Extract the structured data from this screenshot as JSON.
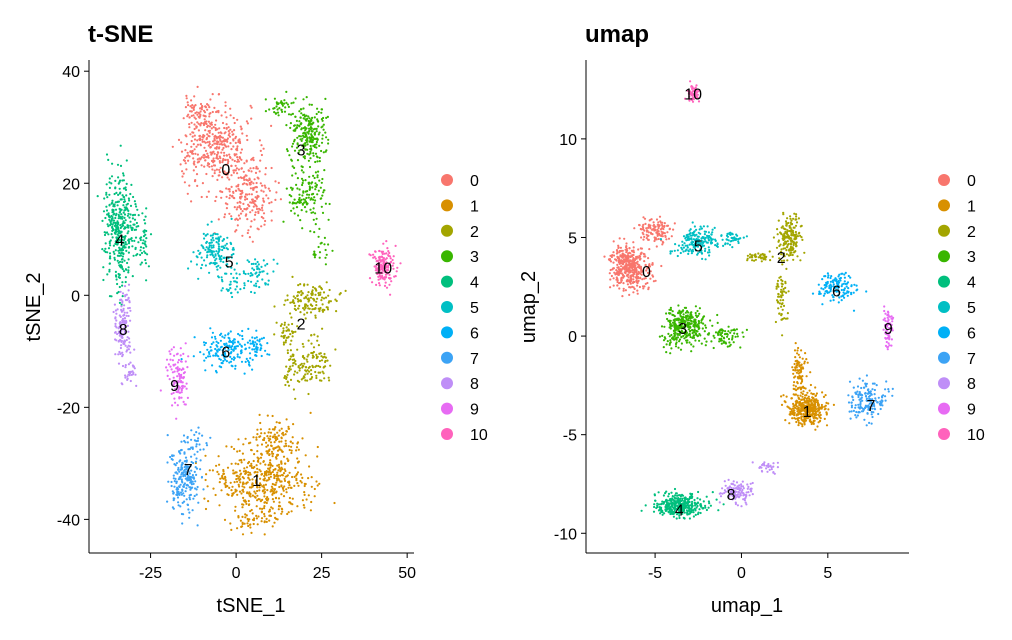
{
  "legend_labels": [
    "0",
    "1",
    "2",
    "3",
    "4",
    "5",
    "6",
    "7",
    "8",
    "9",
    "10"
  ],
  "colors": [
    "#F8766D",
    "#D89000",
    "#A3A500",
    "#39B600",
    "#00BF7D",
    "#00BFC4",
    "#00B0F6",
    "#3CA3F5",
    "#BF8EF7",
    "#E76BF3",
    "#FF62BC"
  ],
  "chart_data": [
    {
      "type": "scatter",
      "title": "t-SNE",
      "xlabel": "tSNE_1",
      "ylabel": "tSNE_2",
      "xlim": [
        -43,
        52
      ],
      "ylim": [
        -46,
        42
      ],
      "x_ticks": [
        -25,
        0,
        25,
        50
      ],
      "y_ticks": [
        -40,
        -20,
        0,
        20,
        40
      ],
      "x_tick_labels": [
        "-25",
        "0",
        "25",
        "50"
      ],
      "y_tick_labels": [
        "-40",
        "-20",
        "0",
        "20",
        "40"
      ],
      "grid": false,
      "legend_placement": "right",
      "clusters": [
        {
          "label": "0",
          "label_x": -3,
          "label_y": 22.5,
          "blobs": [
            [
              -5,
              27,
              8,
              6,
              330
            ],
            [
              3,
              18,
              7,
              6,
              220
            ],
            [
              -11,
              33,
              4,
              3,
              60
            ],
            [
              -14,
              23,
              3,
              5,
              40
            ]
          ]
        },
        {
          "label": "1",
          "label_x": 6,
          "label_y": -33,
          "blobs": [
            [
              8,
              -33,
              13,
              5,
              430
            ],
            [
              12,
              -26,
              6,
              4,
              120
            ],
            [
              5,
              -40,
              8,
              2,
              60
            ]
          ]
        },
        {
          "label": "2",
          "label_x": 19,
          "label_y": -5,
          "blobs": [
            [
              22,
              -1,
              6,
              3,
              130
            ],
            [
              23,
              -12,
              4,
              4,
              90
            ],
            [
              17,
              -13,
              3,
              3,
              50
            ],
            [
              15,
              -7,
              3,
              2,
              40
            ]
          ]
        },
        {
          "label": "3",
          "label_x": 19,
          "label_y": 26,
          "blobs": [
            [
              21,
              29,
              5,
              5,
              220
            ],
            [
              21,
              18,
              5,
              5,
              130
            ],
            [
              13,
              34,
              4,
              2,
              40
            ],
            [
              25,
              8,
              2,
              2,
              20
            ]
          ]
        },
        {
          "label": "4",
          "label_x": -34,
          "label_y": 10,
          "blobs": [
            [
              -34,
              12,
              4,
              9,
              380
            ],
            [
              -27,
              9,
              2,
              5,
              40
            ]
          ]
        },
        {
          "label": "5",
          "label_x": -2,
          "label_y": 6,
          "blobs": [
            [
              -6,
              8,
              5,
              4,
              140
            ],
            [
              6,
              4,
              4,
              3,
              60
            ],
            [
              -2,
              2,
              3,
              2,
              30
            ]
          ]
        },
        {
          "label": "6",
          "label_x": -3,
          "label_y": -10,
          "blobs": [
            [
              -3,
              -10,
              7,
              3,
              160
            ],
            [
              6,
              -9,
              3,
              3,
              40
            ]
          ]
        },
        {
          "label": "7",
          "label_x": -14,
          "label_y": -31,
          "blobs": [
            [
              -15,
              -33,
              4,
              5,
              200
            ],
            [
              -12,
              -26,
              3,
              2,
              30
            ]
          ]
        },
        {
          "label": "8",
          "label_x": -33,
          "label_y": -6,
          "blobs": [
            [
              -33,
              -6,
              2.5,
              6,
              150
            ],
            [
              -31,
              -14,
              1.5,
              2,
              20
            ]
          ]
        },
        {
          "label": "9",
          "label_x": -18,
          "label_y": -16,
          "blobs": [
            [
              -17,
              -15,
              2.5,
              5,
              110
            ]
          ]
        },
        {
          "label": "10",
          "label_x": 43,
          "label_y": 5,
          "blobs": [
            [
              43,
              5,
              3,
              3,
              150
            ]
          ]
        }
      ]
    },
    {
      "type": "scatter",
      "title": "umap",
      "xlabel": "umap_1",
      "ylabel": "umap_2",
      "xlim": [
        -9,
        9.7
      ],
      "ylim": [
        -11,
        14
      ],
      "x_ticks": [
        -5,
        0,
        5
      ],
      "y_ticks": [
        -10,
        -5,
        0,
        5,
        10
      ],
      "x_tick_labels": [
        "-5",
        "0",
        "5"
      ],
      "y_tick_labels": [
        "-10",
        "-5",
        "0",
        "5",
        "10"
      ],
      "grid": false,
      "legend_placement": "right",
      "clusters": [
        {
          "label": "0",
          "label_x": -5.5,
          "label_y": 3.3,
          "blobs": [
            [
              -6.5,
              3.5,
              1.0,
              1.0,
              420
            ],
            [
              -5,
              5.3,
              1.0,
              0.6,
              120
            ]
          ]
        },
        {
          "label": "1",
          "label_x": 3.8,
          "label_y": -3.8,
          "blobs": [
            [
              3.8,
              -3.7,
              1.0,
              0.7,
              380
            ],
            [
              3.3,
              -1.8,
              0.4,
              1.0,
              90
            ]
          ]
        },
        {
          "label": "2",
          "label_x": 2.3,
          "label_y": 4.0,
          "blobs": [
            [
              2.8,
              5.0,
              0.6,
              1.0,
              180
            ],
            [
              2.3,
              2.0,
              0.3,
              1.2,
              60
            ],
            [
              1.0,
              4.0,
              0.8,
              0.2,
              40
            ]
          ]
        },
        {
          "label": "3",
          "label_x": -3.4,
          "label_y": 0.4,
          "blobs": [
            [
              -3.3,
              0.5,
              1.1,
              0.9,
              330
            ],
            [
              -1.0,
              0.0,
              0.8,
              0.5,
              70
            ]
          ]
        },
        {
          "label": "4",
          "label_x": -3.6,
          "label_y": -8.8,
          "blobs": [
            [
              -3.6,
              -8.6,
              1.4,
              0.5,
              360
            ]
          ]
        },
        {
          "label": "5",
          "label_x": -2.5,
          "label_y": 4.6,
          "blobs": [
            [
              -2.5,
              4.8,
              1.2,
              0.6,
              180
            ],
            [
              -0.5,
              5.0,
              0.8,
              0.3,
              40
            ]
          ]
        },
        {
          "label": "6",
          "label_x": 5.5,
          "label_y": 2.3,
          "blobs": [
            [
              5.5,
              2.5,
              1.0,
              0.6,
              130
            ]
          ]
        },
        {
          "label": "7",
          "label_x": 7.5,
          "label_y": -3.5,
          "blobs": [
            [
              7.3,
              -3.3,
              0.9,
              0.9,
              160
            ]
          ]
        },
        {
          "label": "8",
          "label_x": -0.6,
          "label_y": -8.0,
          "blobs": [
            [
              -0.3,
              -7.9,
              0.8,
              0.5,
              110
            ],
            [
              1.5,
              -6.7,
              0.6,
              0.3,
              30
            ]
          ]
        },
        {
          "label": "9",
          "label_x": 8.5,
          "label_y": 0.4,
          "blobs": [
            [
              8.5,
              0.3,
              0.25,
              0.9,
              70
            ]
          ]
        },
        {
          "label": "10",
          "label_x": -2.8,
          "label_y": 12.3,
          "blobs": [
            [
              -2.8,
              12.3,
              0.35,
              0.35,
              60
            ]
          ]
        }
      ]
    }
  ]
}
